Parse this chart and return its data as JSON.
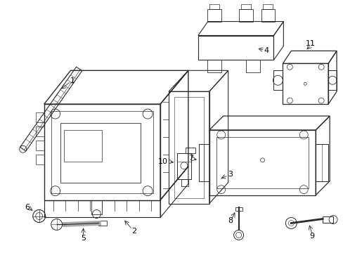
{
  "bg_color": "#ffffff",
  "line_color": "#2a2a2a",
  "text_color": "#000000",
  "fig_width": 4.89,
  "fig_height": 3.6,
  "dpi": 100,
  "lw": 0.7,
  "font_size": 8
}
